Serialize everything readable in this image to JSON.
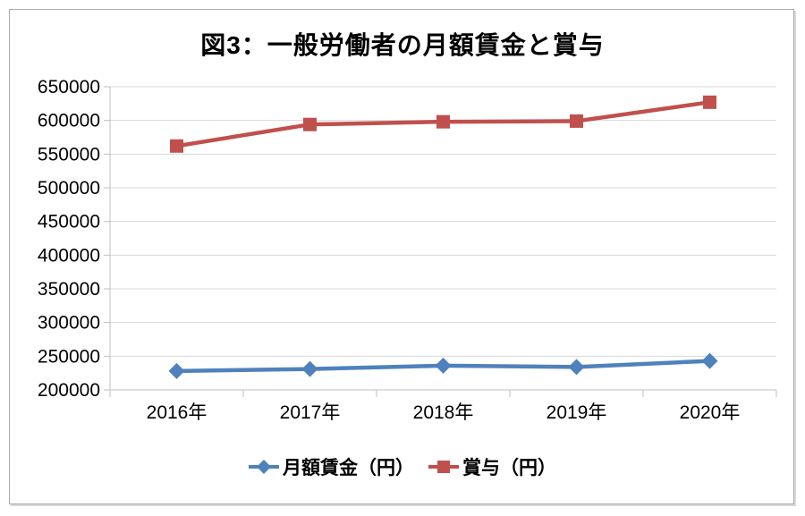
{
  "chart_data": {
    "type": "line",
    "title": "図3：一般労働者の月額賃金と賞与",
    "categories": [
      "2016年",
      "2017年",
      "2018年",
      "2019年",
      "2020年"
    ],
    "series": [
      {
        "name": "月額賃金（円）",
        "color": "#4F81BD",
        "marker": "diamond",
        "values": [
          228000,
          231000,
          236000,
          234000,
          243000
        ]
      },
      {
        "name": "賞与（円）",
        "color": "#C0504D",
        "marker": "square",
        "values": [
          562000,
          594000,
          598000,
          599000,
          627000
        ]
      }
    ],
    "ylim": [
      200000,
      650000
    ],
    "ytick_step": 50000,
    "yticks": [
      200000,
      250000,
      300000,
      350000,
      400000,
      450000,
      500000,
      550000,
      600000,
      650000
    ],
    "xlabel": "",
    "ylabel": "",
    "grid": true,
    "legend_position": "bottom",
    "colors": {
      "gridline": "#d9d9d9",
      "axis_line": "#bfbfbf",
      "tick": "#bfbfbf",
      "label": "#000000",
      "frame_border": "#ababab"
    }
  }
}
